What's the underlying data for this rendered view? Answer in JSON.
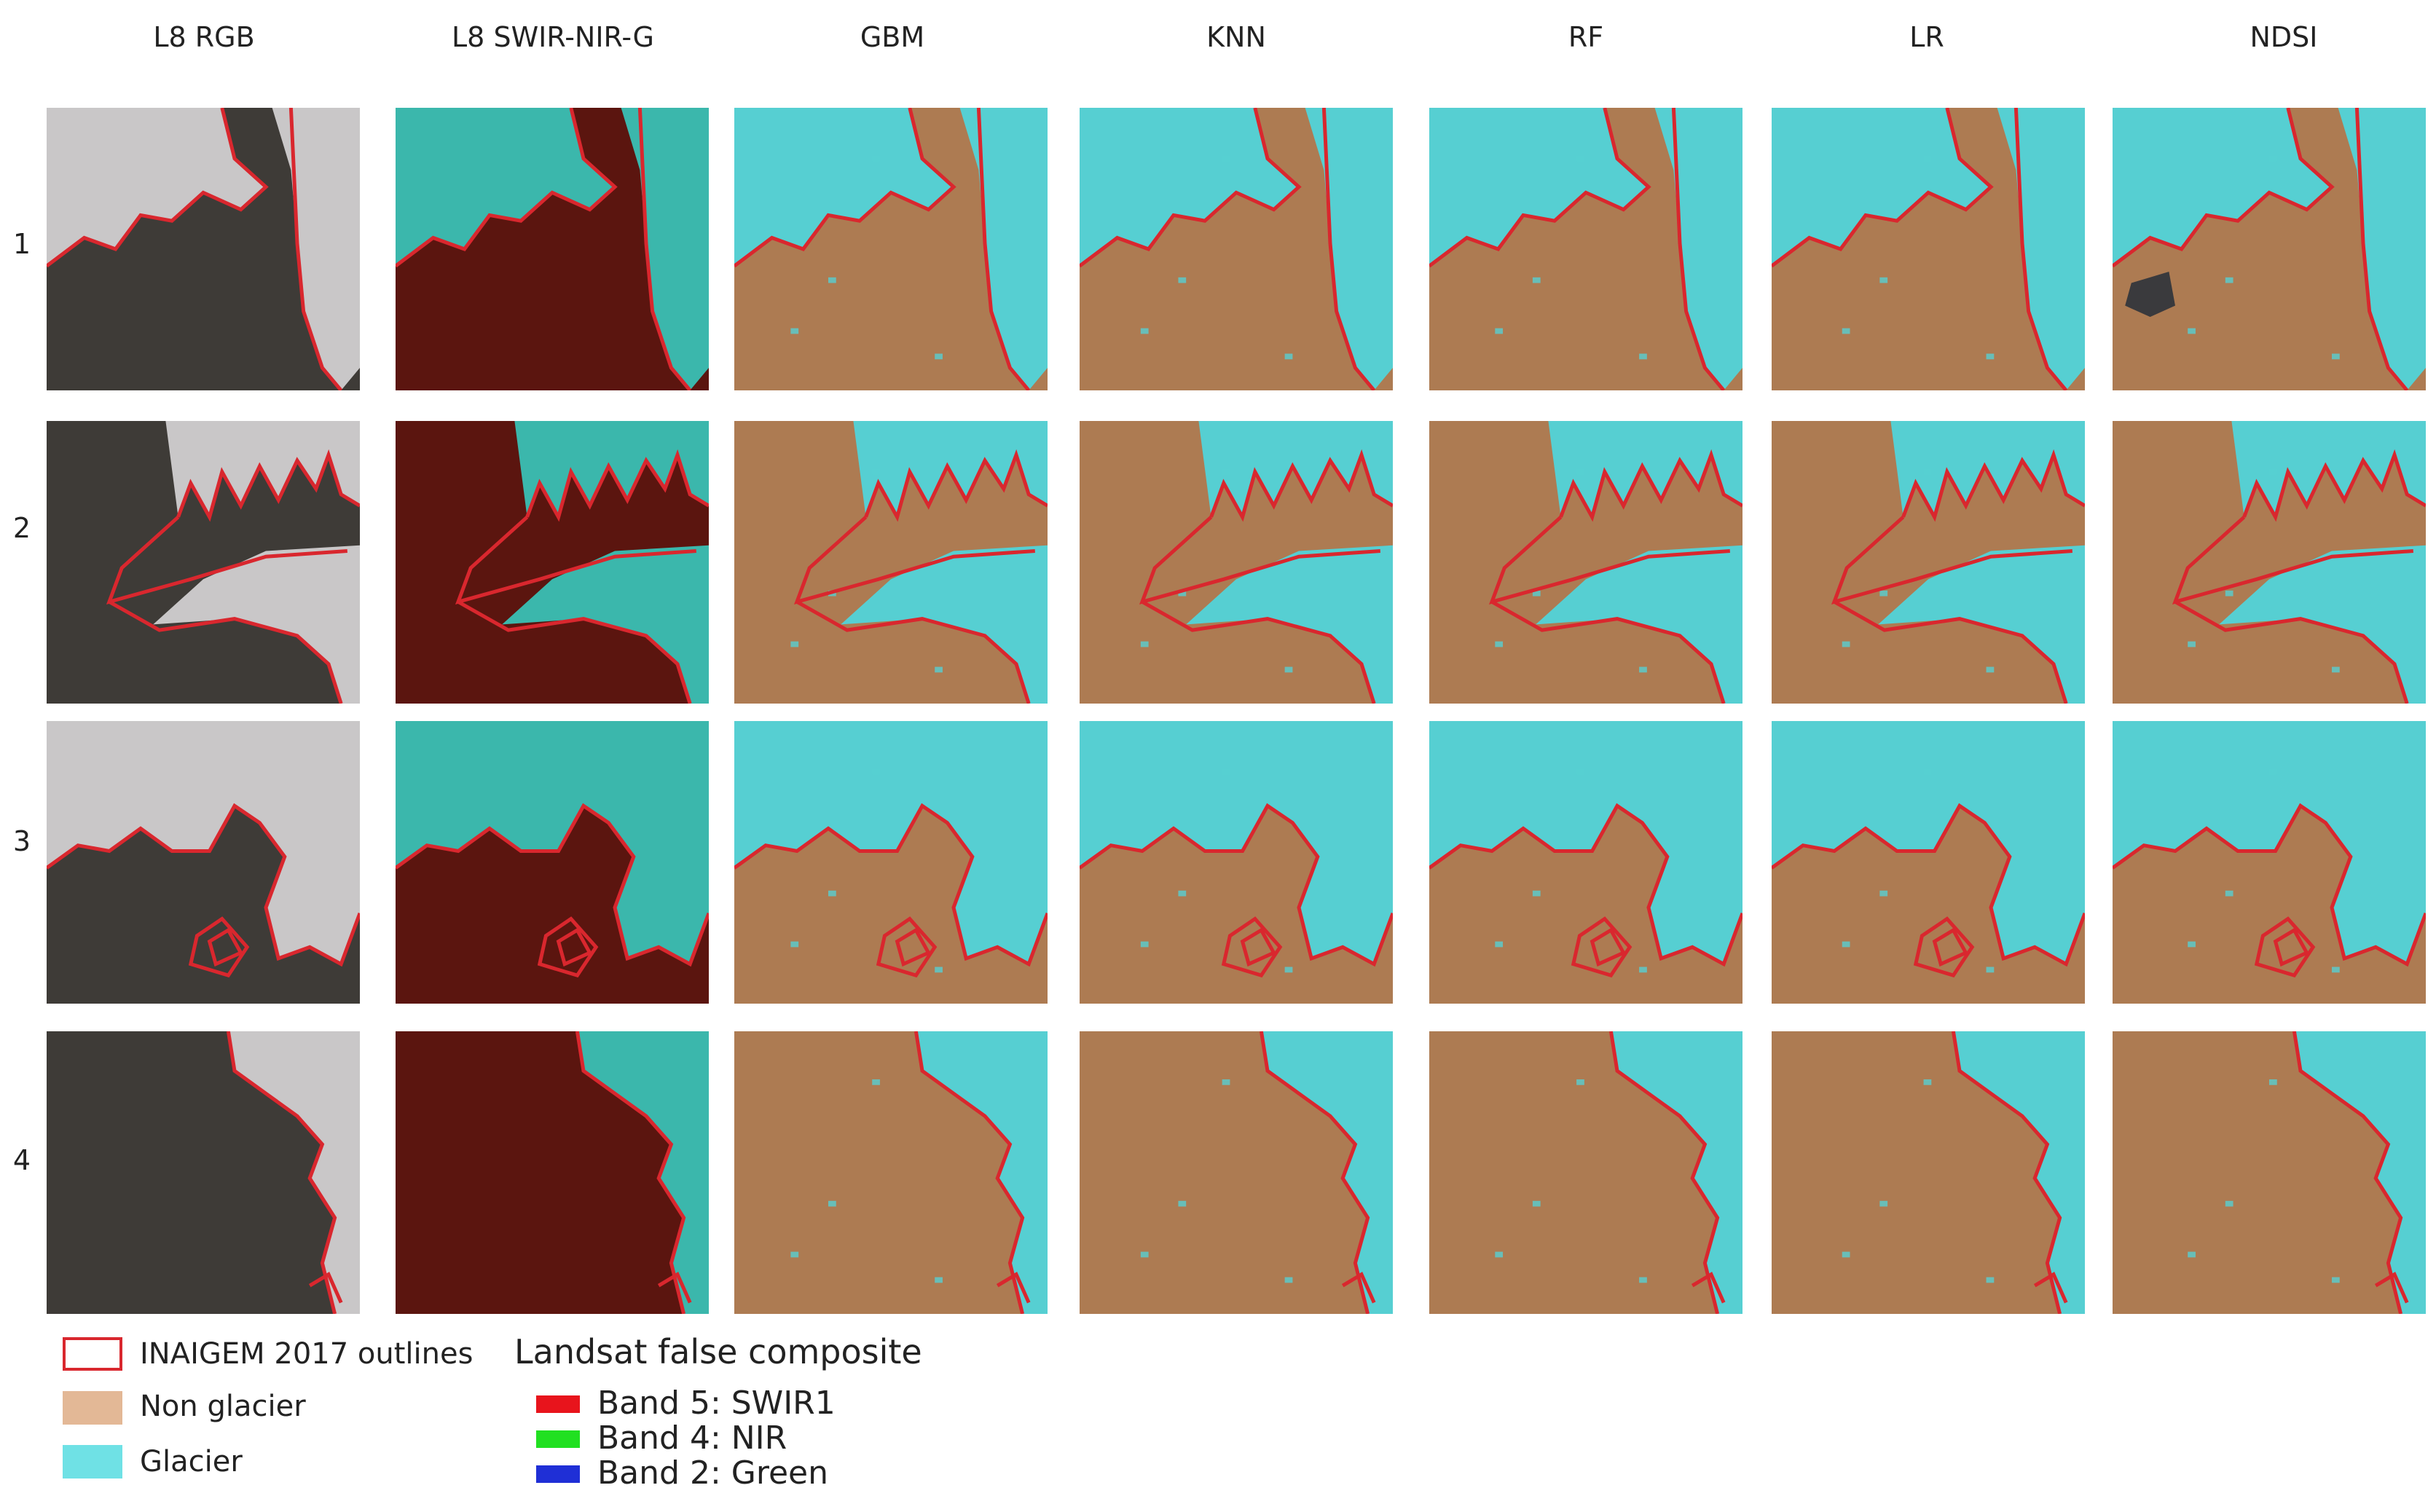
{
  "columns": [
    "L8 RGB",
    "L8 SWIR-NIR-G",
    "GBM",
    "KNN",
    "RF",
    "LR",
    "NDSI"
  ],
  "rows": [
    "1",
    "2",
    "3",
    "4"
  ],
  "legend": {
    "outline_label": "INAIGEM 2017 outlines",
    "non_glacier_label": "Non glacier",
    "glacier_label": "Glacier",
    "composite_title": "Landsat false composite",
    "bands": [
      {
        "label": "Band 5: SWIR1",
        "color": "#e8141c"
      },
      {
        "label": "Band 4: NIR",
        "color": "#21e021"
      },
      {
        "label": "Band 2: Green",
        "color": "#1f2fd6"
      }
    ]
  },
  "colors": {
    "outline": "#d9272e",
    "non_glacier": "#ad7b52",
    "glacier": "#56cfd2",
    "legend_non_glacier": "#e3b896",
    "legend_glacier": "#6fe1e5",
    "rgb_dark": "#3e3b37",
    "rgb_snow": "#c9c7c8",
    "false_rock": "#5b150f",
    "false_ice": "#3bb7ac"
  }
}
